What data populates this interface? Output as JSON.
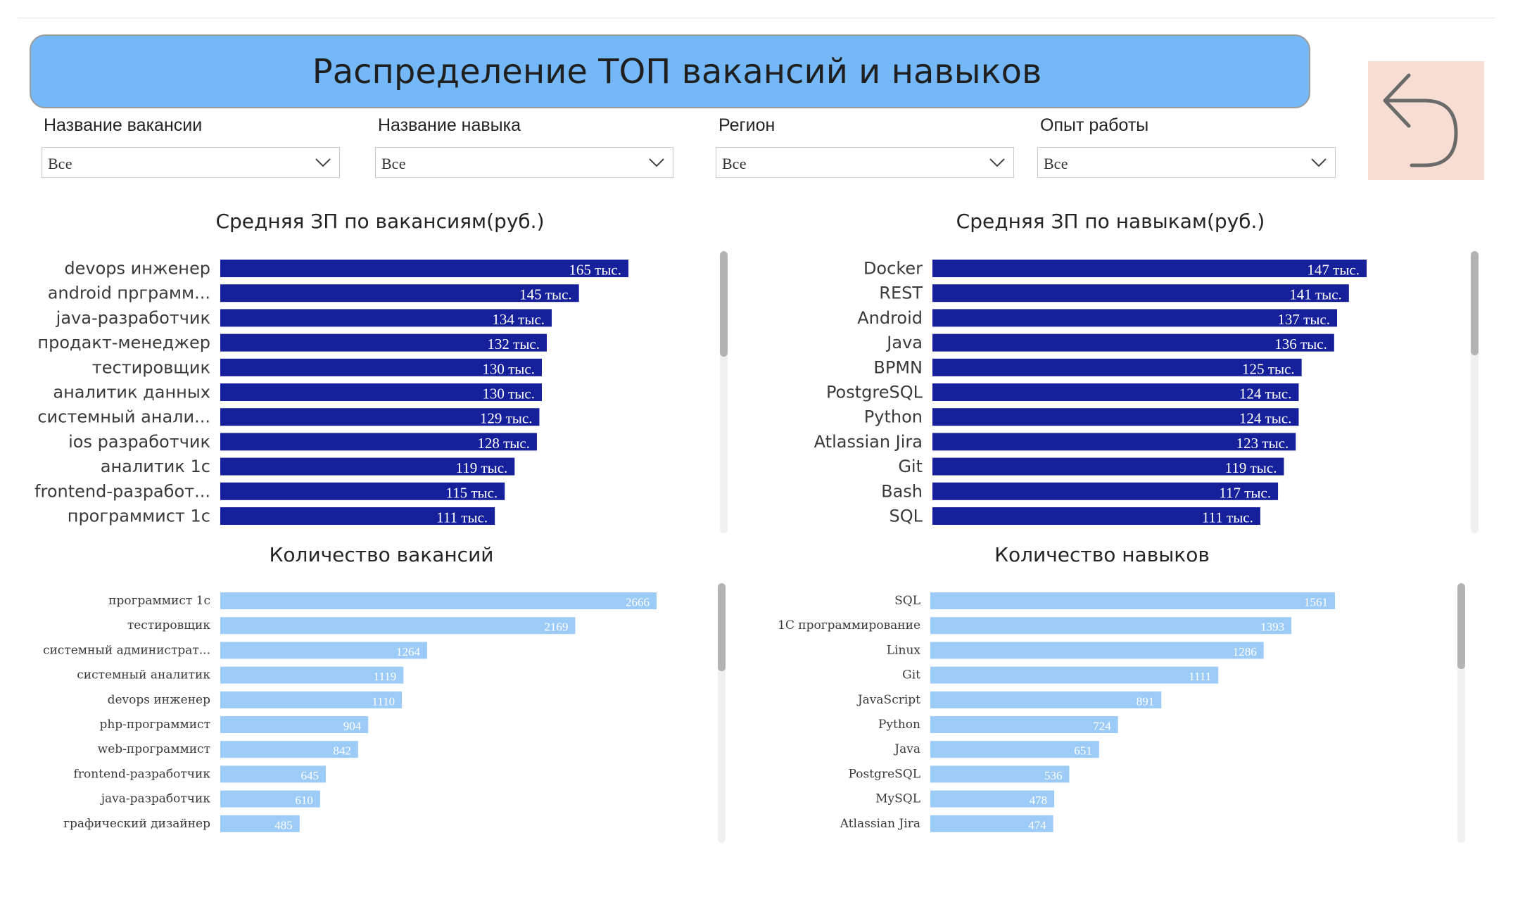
{
  "header": {
    "title": "Распределение ТОП вакансий и навыков",
    "back_icon": "undo-arrow-icon"
  },
  "filters": [
    {
      "label": "Название вакансии",
      "value": "Все"
    },
    {
      "label": "Название навыка",
      "value": "Все"
    },
    {
      "label": "Регион",
      "value": "Все"
    },
    {
      "label": "Опыт работы",
      "value": "Все"
    }
  ],
  "colors": {
    "dark_bar": "#15209a",
    "light_bar": "#9ccbf8",
    "banner": "#74b8f8",
    "back_button": "#f7ddd3"
  },
  "chart_data": [
    {
      "type": "bar",
      "orientation": "horizontal",
      "title": "Средняя ЗП по вакансиям(руб.)",
      "categories": [
        "devops инженер",
        "android прграмм...",
        "java-разработчик",
        "продакт-менеджер",
        "тестировщик",
        "аналитик данных",
        "системный анали...",
        "ios разработчик",
        "аналитик 1с",
        "frontend-разработ...",
        "программист 1с"
      ],
      "values": [
        165,
        145,
        134,
        132,
        130,
        130,
        129,
        128,
        119,
        115,
        111
      ],
      "labels": [
        "165 тыс.",
        "145 тыс.",
        "134 тыс.",
        "132 тыс.",
        "130 тыс.",
        "130 тыс.",
        "129 тыс.",
        "128 тыс.",
        "119 тыс.",
        "115 тыс.",
        "111 тыс."
      ],
      "xlim": [
        0,
        165
      ],
      "color": "#15209a"
    },
    {
      "type": "bar",
      "orientation": "horizontal",
      "title": "Средняя ЗП по навыкам(руб.)",
      "categories": [
        "Docker",
        "REST",
        "Android",
        "Java",
        "BPMN",
        "PostgreSQL",
        "Python",
        "Atlassian Jira",
        "Git",
        "Bash",
        "SQL"
      ],
      "values": [
        147,
        141,
        137,
        136,
        125,
        124,
        124,
        123,
        119,
        117,
        111
      ],
      "labels": [
        "147 тыс.",
        "141 тыс.",
        "137 тыс.",
        "136 тыс.",
        "125 тыс.",
        "124 тыс.",
        "124 тыс.",
        "123 тыс.",
        "119 тыс.",
        "117 тыс.",
        "111 тыс."
      ],
      "xlim": [
        0,
        147
      ],
      "color": "#15209a"
    },
    {
      "type": "bar",
      "orientation": "horizontal",
      "title": "Количество вакансий",
      "categories": [
        "программист 1с",
        "тестировщик",
        "системный администрат...",
        "системный аналитик",
        "devops инженер",
        "php-программист",
        "web-программист",
        "frontend-разработчик",
        "java-разработчик",
        "графический дизайнер"
      ],
      "values": [
        2666,
        2169,
        1264,
        1119,
        1110,
        904,
        842,
        645,
        610,
        485
      ],
      "labels": [
        "2666",
        "2169",
        "1264",
        "1119",
        "1110",
        "904",
        "842",
        "645",
        "610",
        "485"
      ],
      "xlim": [
        0,
        2666
      ],
      "color": "#9ccbf8"
    },
    {
      "type": "bar",
      "orientation": "horizontal",
      "title": "Количество навыков",
      "categories": [
        "SQL",
        "1С программирование",
        "Linux",
        "Git",
        "JavaScript",
        "Python",
        "Java",
        "PostgreSQL",
        "MySQL",
        "Atlassian Jira"
      ],
      "values": [
        1561,
        1393,
        1286,
        1111,
        891,
        724,
        651,
        536,
        478,
        474
      ],
      "labels": [
        "1561",
        "1393",
        "1286",
        "1111",
        "891",
        "724",
        "651",
        "536",
        "478",
        "474"
      ],
      "xlim": [
        0,
        1561
      ],
      "color": "#9ccbf8"
    }
  ]
}
